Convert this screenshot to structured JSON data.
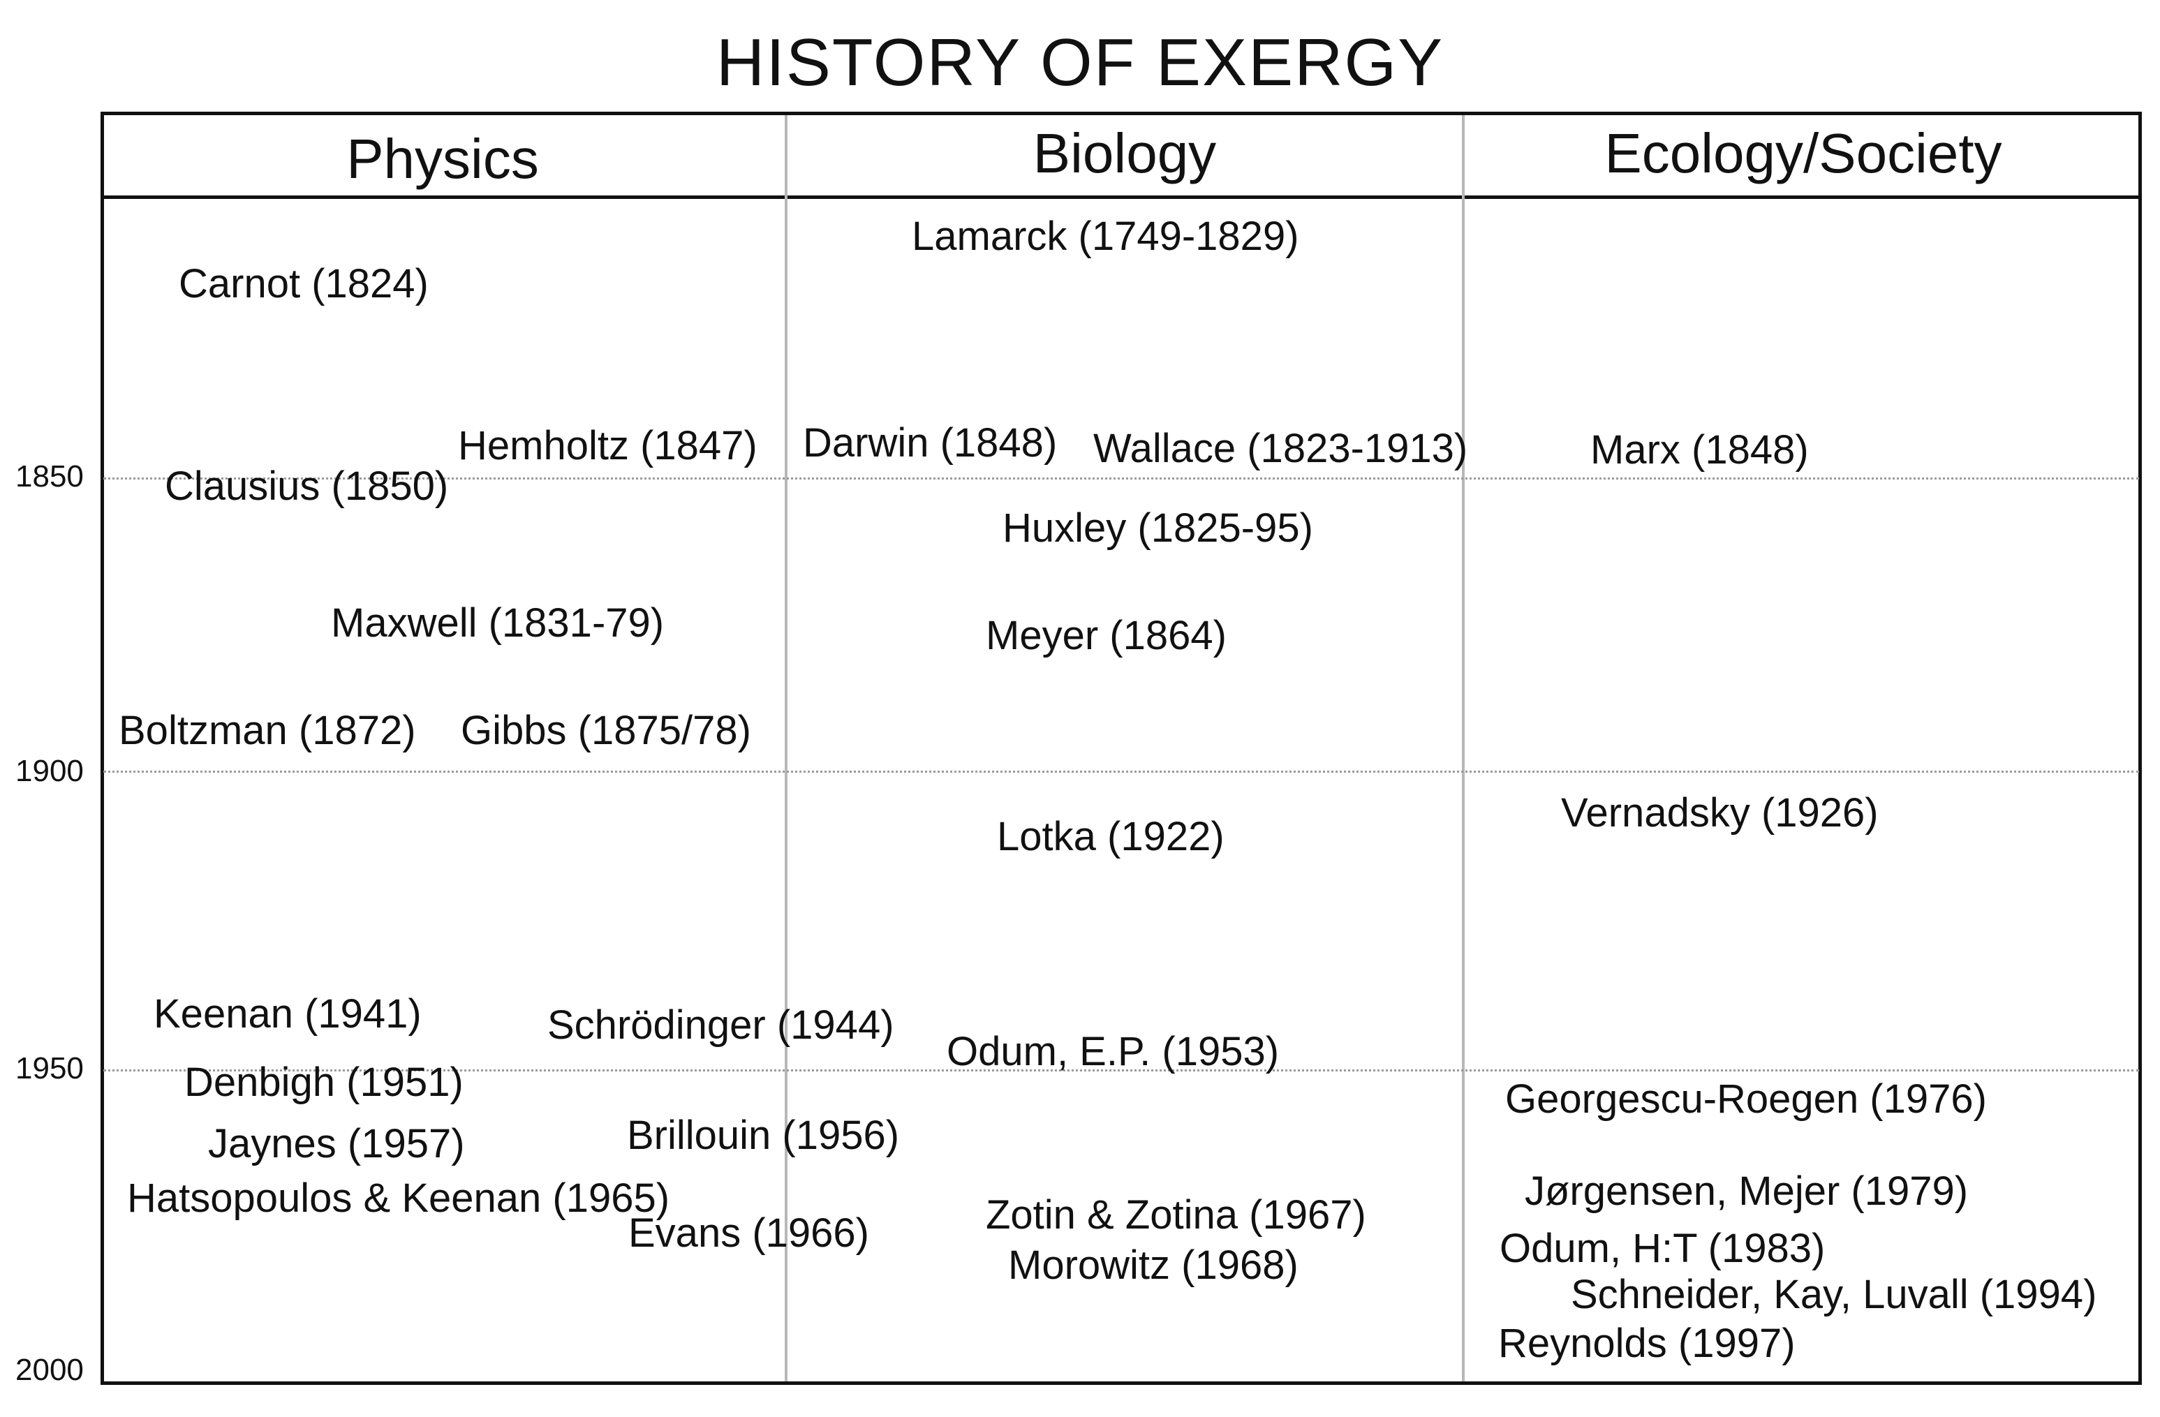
{
  "title": "HISTORY OF EXERGY",
  "columns": [
    "Physics",
    "Biology",
    "Ecology/Society"
  ],
  "timeline_years": [
    "1850",
    "1900",
    "1950",
    "2000"
  ],
  "entries": {
    "physics": [
      "Carnot (1824)",
      "Hemholtz (1847)",
      "Clausius (1850)",
      "Maxwell (1831-79)",
      "Boltzman (1872)",
      "Gibbs (1875/78)",
      "Keenan (1941)",
      "Schrödinger (1944)",
      "Denbigh (1951)",
      "Jaynes (1957)",
      "Brillouin (1956)",
      "Hatsopoulos & Keenan (1965)",
      "Evans (1966)"
    ],
    "biology": [
      "Lamarck (1749-1829)",
      "Darwin (1848)",
      "Wallace (1823-1913)",
      "Huxley (1825-95)",
      "Meyer (1864)",
      "Lotka (1922)",
      "Odum, E.P. (1953)",
      "Zotin & Zotina (1967)",
      "Morowitz (1968)"
    ],
    "ecology": [
      "Marx (1848)",
      "Vernadsky (1926)",
      "Georgescu-Roegen (1976)",
      "Jørgensen, Mejer (1979)",
      "Odum, H:T (1983)",
      "Schneider, Kay, Luvall (1994)",
      "Reynolds (1997)"
    ]
  }
}
